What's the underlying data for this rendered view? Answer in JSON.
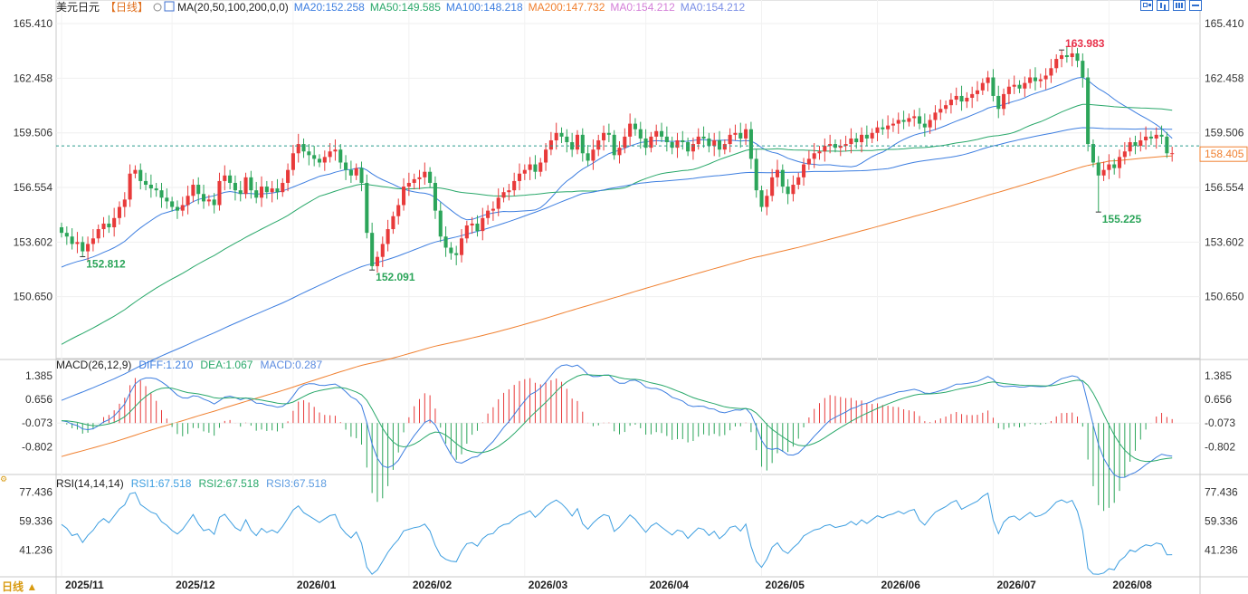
{
  "header": {
    "symbol": "美元日元",
    "period_tag": "【日线】",
    "ma_prefix": "MA(20,50,100,200,0,0)",
    "ma_values": [
      {
        "label": "MA20:152.258",
        "color": "#3d7ee0"
      },
      {
        "label": "MA50:149.585",
        "color": "#29a86a"
      },
      {
        "label": "MA100:148.218",
        "color": "#3d7ee0"
      },
      {
        "label": "MA200:147.732",
        "color": "#f08030"
      },
      {
        "label": "MA0:154.212",
        "color": "#d47fd8"
      },
      {
        "label": "MA0:154.212",
        "color": "#7b8fe6"
      }
    ]
  },
  "macd_header": {
    "name": "MACD(26,12,9)",
    "diff": "DIFF:1.210",
    "dea": "DEA:1.067",
    "macd": "MACD:0.287"
  },
  "rsi_header": {
    "name": "RSI(14,14,14)",
    "rsi1": "RSI1:67.518",
    "rsi2": "RSI2:67.518",
    "rsi3": "RSI3:67.518"
  },
  "period_button": "日线 ▲",
  "side_marker": "⚙",
  "colors": {
    "up": "#e83a3a",
    "down": "#2ca55a",
    "ma20": "#3d7ee0",
    "ma50": "#29a86a",
    "ma100": "#3d7ee0",
    "ma200": "#f08030",
    "diff": "#3d7ee0",
    "dea": "#29a86a",
    "rsi": "#3d9ee0",
    "last_price_bg": "#f08030",
    "annotation_high": "#e8304a",
    "annotation_low": "#2ca55a"
  },
  "chart_data": [
    {
      "type": "candlestick",
      "title": "美元日元",
      "y_ticks": [
        "165.410",
        "162.458",
        "159.506",
        "156.554",
        "153.602",
        "150.650"
      ],
      "ylim": [
        147.5,
        166.0
      ],
      "x_ticks": [
        "2025/11",
        "2025/12",
        "2026/01",
        "2026/02",
        "2026/03",
        "2026/04",
        "2026/05",
        "2026/06",
        "2026/07",
        "2026/08"
      ],
      "last_price": "158.405",
      "annotations": [
        {
          "text": "163.983",
          "kind": "high",
          "index": 190,
          "value": 163.983
        },
        {
          "text": "152.812",
          "kind": "low",
          "index": 4,
          "value": 152.812
        },
        {
          "text": "152.091",
          "kind": "low",
          "index": 59,
          "value": 152.091
        },
        {
          "text": "155.225",
          "kind": "low",
          "index": 197,
          "value": 155.225
        }
      ],
      "close": [
        154.1,
        153.9,
        153.5,
        153.6,
        153.1,
        153.5,
        153.8,
        154.3,
        154.6,
        154.4,
        154.9,
        155.5,
        155.9,
        157.3,
        157.5,
        156.9,
        156.7,
        156.5,
        156.4,
        156.0,
        155.8,
        155.5,
        155.3,
        155.6,
        156.1,
        156.7,
        156.2,
        155.8,
        155.9,
        155.6,
        156.9,
        157.2,
        156.8,
        156.4,
        156.2,
        157.1,
        156.4,
        156.0,
        156.6,
        156.3,
        156.5,
        156.3,
        156.8,
        157.5,
        158.4,
        158.9,
        158.5,
        158.3,
        158.1,
        157.9,
        158.2,
        158.5,
        158.6,
        157.9,
        157.5,
        157.2,
        157.6,
        156.8,
        154.1,
        152.3,
        152.8,
        153.5,
        154.3,
        155.0,
        155.6,
        156.6,
        156.8,
        157.0,
        157.1,
        157.4,
        156.8,
        155.3,
        153.9,
        153.3,
        153.0,
        152.9,
        153.8,
        154.5,
        154.6,
        154.2,
        154.9,
        155.3,
        155.4,
        156.0,
        156.3,
        156.4,
        156.9,
        157.3,
        157.5,
        157.8,
        157.4,
        157.9,
        158.6,
        159.1,
        159.5,
        159.3,
        159.0,
        158.6,
        159.4,
        158.4,
        158.0,
        158.6,
        159.1,
        159.5,
        159.4,
        158.3,
        158.7,
        159.3,
        160.0,
        159.7,
        159.2,
        158.7,
        159.3,
        159.6,
        159.3,
        159.0,
        158.7,
        159.1,
        159.0,
        158.5,
        158.9,
        159.3,
        159.2,
        158.8,
        159.1,
        158.6,
        158.9,
        159.4,
        159.5,
        159.2,
        159.7,
        158.1,
        156.4,
        155.5,
        156.1,
        157.1,
        157.5,
        156.6,
        156.2,
        156.7,
        157.1,
        157.8,
        158.1,
        158.4,
        158.5,
        158.8,
        158.9,
        158.7,
        158.8,
        158.9,
        159.2,
        159.0,
        159.4,
        159.2,
        159.5,
        159.8,
        159.7,
        159.9,
        160.0,
        160.2,
        160.1,
        160.3,
        160.4,
        160.0,
        159.8,
        160.2,
        160.6,
        160.8,
        161.0,
        161.3,
        161.5,
        161.2,
        161.4,
        161.6,
        161.8,
        162.2,
        162.5,
        161.5,
        160.8,
        161.6,
        162.0,
        162.1,
        161.9,
        162.2,
        162.5,
        162.3,
        162.4,
        162.6,
        163.0,
        163.5,
        163.7,
        163.6,
        163.8,
        163.4,
        162.5,
        158.9,
        157.9,
        157.2,
        157.5,
        157.8,
        157.6,
        158.2,
        158.5,
        159.0,
        158.8,
        159.1,
        159.3,
        159.2,
        159.4,
        159.3,
        158.4,
        158.405
      ],
      "series": [
        {
          "name": "MA20",
          "text": "MA20:152.258"
        },
        {
          "name": "MA50",
          "text": "MA50:149.585"
        },
        {
          "name": "MA100",
          "text": "MA100:148.218"
        },
        {
          "name": "MA200",
          "text": "MA200:147.732"
        }
      ]
    },
    {
      "type": "line",
      "title": "MACD(26,12,9)",
      "y_ticks": [
        "1.385",
        "0.656",
        "-0.073",
        "-0.802"
      ],
      "ylim": [
        -1.6,
        1.8
      ],
      "series": [
        {
          "name": "DIFF",
          "text": "DIFF:1.210"
        },
        {
          "name": "DEA",
          "text": "DEA:1.067"
        },
        {
          "name": "MACD",
          "text": "MACD:0.287"
        }
      ]
    },
    {
      "type": "line",
      "title": "RSI(14,14,14)",
      "y_ticks": [
        "77.436",
        "59.336",
        "41.236"
      ],
      "ylim": [
        25,
        85
      ],
      "series": [
        {
          "name": "RSI1",
          "text": "RSI1:67.518"
        },
        {
          "name": "RSI2",
          "text": "RSI2:67.518"
        },
        {
          "name": "RSI3",
          "text": "RSI3:67.518"
        }
      ]
    }
  ]
}
